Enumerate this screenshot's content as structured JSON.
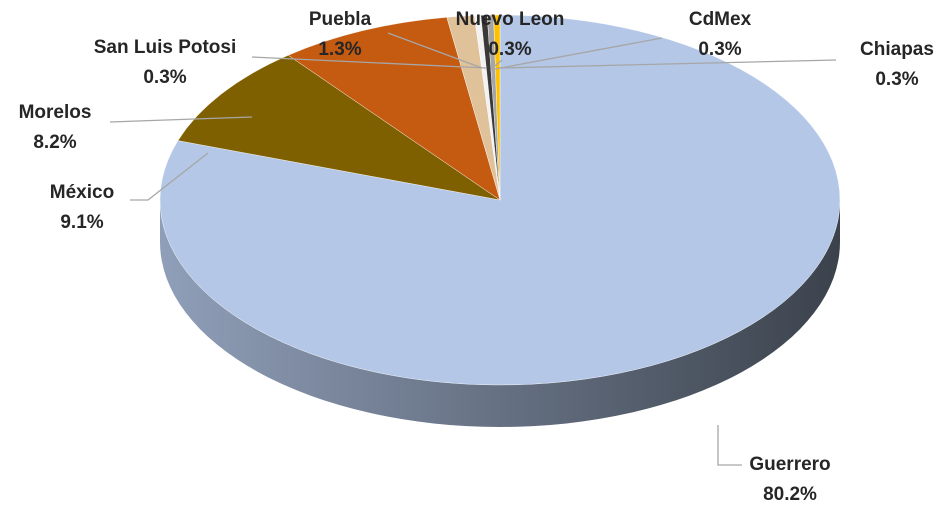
{
  "chart_data": {
    "type": "pie",
    "categories": [
      "Guerrero",
      "México",
      "Morelos",
      "Puebla",
      "San Luis Potosi",
      "Nuevo Leon",
      "CdMex",
      "Chiapas"
    ],
    "values": [
      80.2,
      9.1,
      8.2,
      1.3,
      0.3,
      0.3,
      0.3,
      0.3
    ],
    "value_labels": [
      "80.2%",
      "9.1%",
      "8.2%",
      "1.3%",
      "0.3%",
      "0.3%",
      "0.3%",
      "0.3%"
    ],
    "colors": [
      "#b4c7e7",
      "#7f6000",
      "#c55a11",
      "#dfc29a",
      "#f2f2f2",
      "#3b3838",
      "#a5a5a5",
      "#ffc000"
    ]
  }
}
